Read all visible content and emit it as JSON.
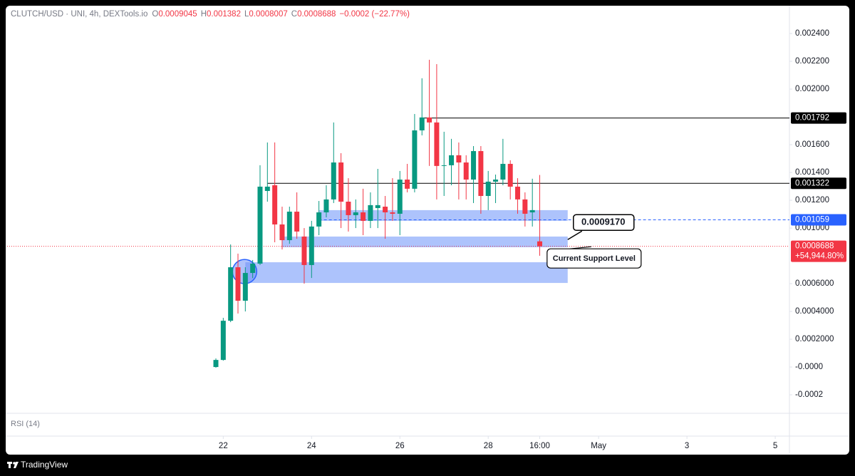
{
  "chart_data": {
    "type": "candlestick",
    "header": {
      "symbol": "CLUTCH/USD · UNI, 4h, DEXTools.io",
      "items": [
        {
          "key": "O",
          "value": "0.0009045"
        },
        {
          "key": "H",
          "value": "0.001382"
        },
        {
          "key": "L",
          "value": "0.0008007"
        },
        {
          "key": "C",
          "value": "0.0008688"
        }
      ],
      "change": "−0.0002 (−22.77%)"
    },
    "categories": [
      null,
      null,
      null,
      null,
      null,
      null,
      null,
      null,
      null,
      null,
      null,
      null,
      null,
      null,
      null,
      null,
      null,
      null,
      null,
      null,
      null,
      null,
      null,
      null,
      null,
      null,
      null,
      null,
      null,
      null,
      null,
      null,
      null,
      null,
      null,
      null,
      null,
      null,
      null,
      null,
      null,
      null,
      null,
      null,
      null
    ],
    "open": [
      0.0,
      5.1e-05,
      0.000333,
      0.000718,
      0.000477,
      0.000677,
      0.000744,
      0.001267,
      0.001308,
      0.001026,
      0.000913,
      0.001118,
      0.000939,
      0.000734,
      0.001011,
      0.001113,
      0.001206,
      0.001472,
      0.00119,
      0.001093,
      0.001113,
      0.001052,
      0.001144,
      0.001154,
      0.001113,
      0.001103,
      0.001349,
      0.001283,
      0.001703,
      0.001796,
      0.00176,
      0.001447,
      0.001452,
      0.001524,
      0.001472,
      0.001349,
      0.001554,
      0.001231,
      0.001334,
      0.001349,
      0.001462,
      0.001298,
      0.001206,
      0.001113,
      0.0009045
    ],
    "high": [
      6.2e-05,
      0.000354,
      0.000882,
      0.000816,
      0.000718,
      0.00077,
      0.001452,
      0.001616,
      0.001616,
      0.001154,
      0.001154,
      0.001257,
      0.001,
      0.001052,
      0.001195,
      0.001308,
      0.00176,
      0.001539,
      0.001359,
      0.001206,
      0.001283,
      0.001257,
      0.001426,
      0.001231,
      0.001359,
      0.001411,
      0.001462,
      0.001821,
      0.002078,
      0.002211,
      0.00218,
      0.001693,
      0.001642,
      0.001616,
      0.001524,
      0.00159,
      0.00159,
      0.001411,
      0.001385,
      0.001642,
      0.001488,
      0.001359,
      0.001257,
      0.001355,
      0.001382
    ],
    "low": [
      -5e-06,
      4.6e-05,
      0.000323,
      0.000385,
      0.0004,
      0.00064,
      0.000734,
      0.00119,
      0.000898,
      0.000846,
      0.000887,
      0.000923,
      0.0006,
      0.000641,
      0.000949,
      0.001077,
      0.00118,
      0.001,
      0.000975,
      0.001,
      0.000949,
      0.001,
      0.001,
      0.000923,
      0.001052,
      0.000949,
      0.001257,
      0.001257,
      0.001667,
      0.001447,
      0.001206,
      0.001231,
      0.001308,
      0.001206,
      0.001206,
      0.00118,
      0.001103,
      0.001129,
      0.00118,
      0.001308,
      0.001206,
      0.001103,
      0.001011,
      0.001011,
      0.0008007
    ],
    "close": [
      5.1e-05,
      0.000333,
      0.000718,
      0.000477,
      0.000677,
      0.000744,
      0.001298,
      0.001298,
      0.001026,
      0.000913,
      0.001118,
      0.000975,
      0.000734,
      0.001011,
      0.001113,
      0.001206,
      0.001472,
      0.00119,
      0.001093,
      0.001113,
      0.001052,
      0.001165,
      0.001165,
      0.001113,
      0.001103,
      0.001349,
      0.001283,
      0.001703,
      0.001796,
      0.00176,
      0.001447,
      0.001452,
      0.001524,
      0.001472,
      0.001349,
      0.001554,
      0.001231,
      0.001334,
      0.001349,
      0.001462,
      0.001298,
      0.001206,
      0.001103,
      0.001129,
      0.0008688
    ],
    "up_color": "#089981",
    "down_color": "#f23645",
    "ylim": [
      -0.000333,
      0.00259
    ],
    "yticks": [
      {
        "value": 0.0024,
        "label": "0.002400"
      },
      {
        "value": 0.0022,
        "label": "0.002200"
      },
      {
        "value": 0.002,
        "label": "0.002000"
      },
      {
        "value": 0.0016,
        "label": "0.001600"
      },
      {
        "value": 0.0014,
        "label": "0.001400"
      },
      {
        "value": 0.0012,
        "label": "0.001200"
      },
      {
        "value": 0.001,
        "label": "0.001000"
      },
      {
        "value": 0.0006,
        "label": "0.0006000"
      },
      {
        "value": 0.0004,
        "label": "0.0004000"
      },
      {
        "value": 0.0002,
        "label": "0.0002000"
      },
      {
        "value": 0,
        "label": "-0.0000"
      },
      {
        "value": -0.0002,
        "label": "-0.0002"
      }
    ],
    "xlim": [
      0,
      78.5
    ],
    "xticks": [
      {
        "value": 1,
        "label": "22"
      },
      {
        "value": 13,
        "label": "24"
      },
      {
        "value": 25,
        "label": "26"
      },
      {
        "value": 37,
        "label": "28"
      },
      {
        "value": 44,
        "label": "16:00"
      },
      {
        "value": 52,
        "label": "May"
      },
      {
        "value": 64,
        "label": "3"
      },
      {
        "value": 76,
        "label": "5"
      }
    ],
    "price_lines": [
      {
        "value": 0.001792,
        "from": 28,
        "color": "#000000",
        "style": "solid"
      },
      {
        "value": 0.001322,
        "from": 7,
        "color": "#000000",
        "style": "solid"
      },
      {
        "value": 0.001059,
        "from": 14,
        "color": "#2962ff",
        "style": "dashed"
      }
    ],
    "current_price": {
      "value": 0.0008688,
      "color": "#f23645",
      "change_label": "+54,944.80%"
    },
    "zones": [
      {
        "from": 14,
        "to": 47.8,
        "low": 0.001052,
        "high": 0.001129
      },
      {
        "from": 9,
        "to": 47.8,
        "low": 0.000862,
        "high": 0.000939
      },
      {
        "from": 4,
        "to": 47.8,
        "low": 0.000605,
        "high": 0.000754
      }
    ],
    "zone_color": "#9fb8fb",
    "highlight": {
      "x": 3.9,
      "value": 0.000687
    },
    "annotations": [
      {
        "text": "0.0009170",
        "x": 47.8,
        "value": 0.000917
      },
      {
        "text": "Current Support Level",
        "x": 51,
        "value": 0.000866
      }
    ],
    "pane_label": "RSI (14)",
    "brand": "TradingView"
  }
}
